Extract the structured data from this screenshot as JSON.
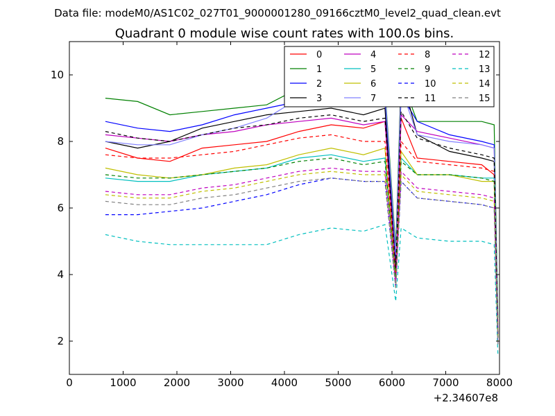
{
  "header": {
    "data_file": "Data file: modeM0/AS1C02_027T01_9000001280_09166cztM0_level2_quad_clean.evt"
  },
  "chart_data": {
    "type": "line",
    "title": "Quadrant 0 module wise count rates with 100.0s bins.",
    "xlabel": "",
    "ylabel": "",
    "x_offset_label": "+2.34607e8",
    "xlim": [
      0,
      8000
    ],
    "ylim": [
      1,
      11
    ],
    "xticks": [
      0,
      1000,
      2000,
      3000,
      4000,
      5000,
      6000,
      7000,
      8000
    ],
    "xtick_labels": [
      "0",
      "1000",
      "2000",
      "3000",
      "4000",
      "5000",
      "6000",
      "7000",
      "8000"
    ],
    "yticks": [
      2,
      4,
      6,
      8,
      10
    ],
    "ytick_labels": [
      "2",
      "4",
      "6",
      "8",
      "10"
    ],
    "grid": false,
    "legend": {
      "placement": "top-right",
      "columns": 4
    },
    "x": [
      670,
      1270,
      1870,
      2470,
      3070,
      3670,
      4270,
      4870,
      5470,
      5870,
      6070,
      6170,
      6470,
      7070,
      7670,
      7900,
      7970
    ],
    "series": [
      {
        "name": "0",
        "color": "#ff0000",
        "style": "solid",
        "values": [
          7.8,
          7.5,
          7.4,
          7.8,
          7.9,
          8.0,
          8.3,
          8.5,
          8.4,
          8.6,
          4.0,
          8.7,
          7.5,
          7.4,
          7.3,
          7.0,
          2.5
        ]
      },
      {
        "name": "1",
        "color": "#008000",
        "style": "solid",
        "values": [
          9.3,
          9.2,
          8.8,
          8.9,
          9.0,
          9.1,
          9.6,
          10.0,
          9.8,
          9.6,
          4.8,
          9.9,
          8.6,
          8.6,
          8.6,
          8.5,
          2.7
        ]
      },
      {
        "name": "2",
        "color": "#0000ff",
        "style": "solid",
        "values": [
          8.6,
          8.4,
          8.3,
          8.5,
          8.8,
          9.0,
          9.2,
          9.4,
          9.2,
          9.3,
          4.4,
          9.4,
          8.6,
          8.2,
          8.0,
          7.9,
          2.2
        ]
      },
      {
        "name": "3",
        "color": "#000000",
        "style": "solid",
        "values": [
          8.0,
          7.8,
          8.0,
          8.4,
          8.6,
          8.8,
          8.9,
          9.0,
          8.8,
          9.0,
          4.1,
          10.0,
          8.2,
          7.7,
          7.5,
          7.4,
          2.1
        ]
      },
      {
        "name": "4",
        "color": "#bf00bf",
        "style": "solid",
        "values": [
          8.2,
          8.1,
          8.0,
          8.2,
          8.3,
          8.5,
          8.6,
          8.7,
          8.5,
          8.6,
          4.1,
          8.8,
          8.3,
          8.1,
          7.9,
          7.8,
          2.3
        ]
      },
      {
        "name": "5",
        "color": "#00bfbf",
        "style": "solid",
        "values": [
          6.9,
          6.8,
          6.8,
          7.0,
          7.1,
          7.2,
          7.5,
          7.6,
          7.4,
          7.5,
          3.9,
          7.5,
          7.0,
          7.0,
          6.9,
          6.9,
          2.2
        ]
      },
      {
        "name": "6",
        "color": "#bfbf00",
        "style": "solid",
        "values": [
          7.2,
          7.0,
          6.9,
          7.0,
          7.2,
          7.3,
          7.6,
          7.8,
          7.6,
          7.8,
          3.9,
          7.7,
          7.0,
          7.0,
          6.8,
          6.8,
          2.2
        ]
      },
      {
        "name": "7",
        "color": "#8080ff",
        "style": "solid",
        "values": [
          8.0,
          7.9,
          7.9,
          8.2,
          8.4,
          8.7,
          9.3,
          9.8,
          9.6,
          9.5,
          4.6,
          9.6,
          8.2,
          8.0,
          7.9,
          7.8,
          2.4
        ]
      },
      {
        "name": "8",
        "color": "#ff0000",
        "style": "dashed",
        "values": [
          7.6,
          7.5,
          7.5,
          7.6,
          7.7,
          7.9,
          8.1,
          8.2,
          8.0,
          8.0,
          4.0,
          8.0,
          7.4,
          7.3,
          7.2,
          7.1,
          2.2
        ]
      },
      {
        "name": "9",
        "color": "#008000",
        "style": "dashed",
        "values": [
          7.0,
          6.9,
          6.9,
          7.0,
          7.1,
          7.2,
          7.4,
          7.5,
          7.3,
          7.4,
          3.9,
          7.4,
          7.0,
          7.0,
          6.9,
          6.8,
          2.1
        ]
      },
      {
        "name": "10",
        "color": "#0000ff",
        "style": "dashed",
        "values": [
          5.8,
          5.8,
          5.9,
          6.0,
          6.2,
          6.4,
          6.7,
          6.9,
          6.8,
          6.8,
          3.6,
          6.8,
          6.3,
          6.2,
          6.1,
          6.0,
          1.9
        ]
      },
      {
        "name": "11",
        "color": "#000000",
        "style": "dashed",
        "values": [
          8.3,
          8.1,
          8.0,
          8.2,
          8.4,
          8.5,
          8.7,
          8.8,
          8.6,
          8.7,
          4.2,
          8.9,
          8.1,
          7.8,
          7.6,
          7.5,
          2.2
        ]
      },
      {
        "name": "12",
        "color": "#bf00bf",
        "style": "dashed",
        "values": [
          6.5,
          6.4,
          6.4,
          6.6,
          6.7,
          6.9,
          7.1,
          7.2,
          7.1,
          7.1,
          3.7,
          7.1,
          6.6,
          6.5,
          6.4,
          6.3,
          2.0
        ]
      },
      {
        "name": "13",
        "color": "#00bfbf",
        "style": "dashed",
        "values": [
          5.2,
          5.0,
          4.9,
          4.9,
          4.9,
          4.9,
          5.2,
          5.4,
          5.3,
          5.5,
          3.2,
          5.4,
          5.1,
          5.0,
          5.0,
          4.9,
          1.6
        ]
      },
      {
        "name": "14",
        "color": "#bfbf00",
        "style": "dashed",
        "values": [
          6.4,
          6.3,
          6.3,
          6.5,
          6.6,
          6.8,
          7.0,
          7.1,
          7.0,
          7.0,
          3.6,
          7.0,
          6.5,
          6.4,
          6.3,
          6.2,
          2.0
        ]
      },
      {
        "name": "15",
        "color": "#808080",
        "style": "dashed",
        "values": [
          6.2,
          6.1,
          6.1,
          6.3,
          6.4,
          6.6,
          6.8,
          6.9,
          6.8,
          6.8,
          3.6,
          6.8,
          6.3,
          6.2,
          6.1,
          6.0,
          1.9
        ]
      }
    ]
  }
}
